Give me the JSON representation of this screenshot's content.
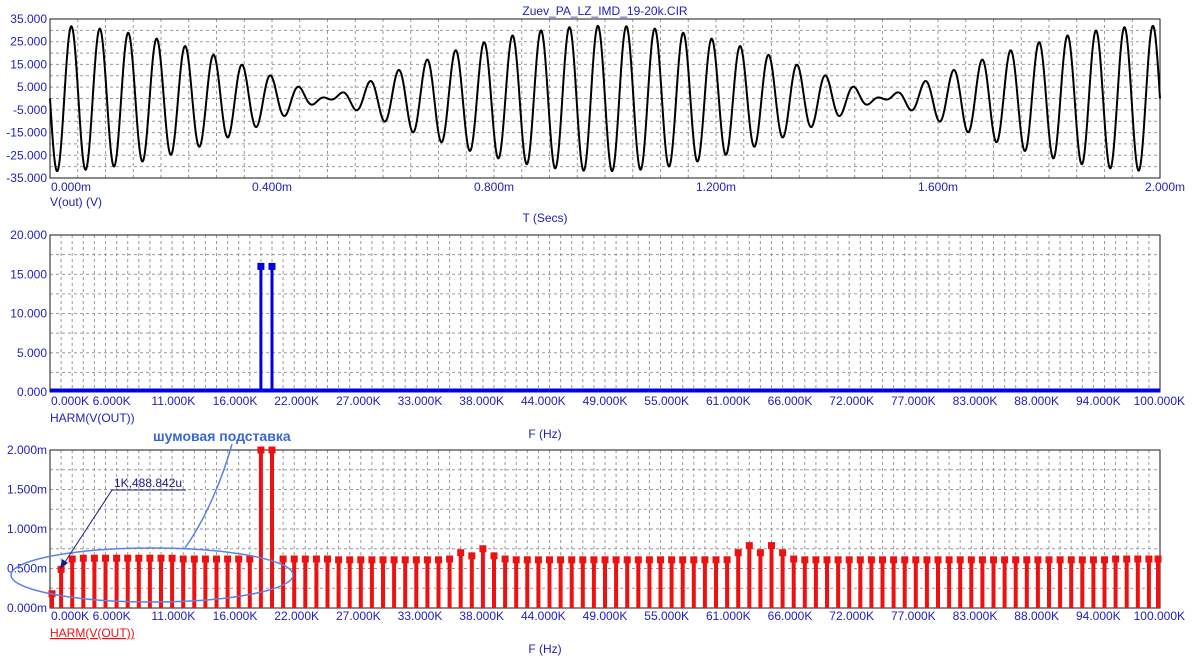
{
  "chart_data": [
    {
      "type": "line",
      "title": "Zuev_PA_LZ_IMD_19-20k.CIR",
      "series_label": "V(out) (V)",
      "xlabel": "T (Secs)",
      "xlim": [
        0,
        0.002
      ],
      "ylim": [
        -35,
        35
      ],
      "x_tick_labels": [
        "0.000m",
        "0.400m",
        "0.800m",
        "1.200m",
        "1.600m",
        "2.000m"
      ],
      "y_tick_labels": [
        "35.000",
        "25.000",
        "15.000",
        "5.000",
        "-5.000",
        "-15.000",
        "-25.000",
        "-35.000"
      ],
      "signal": {
        "tones_hz": [
          19000,
          20000
        ],
        "amplitude_each": 16,
        "peak": 32
      },
      "grid": true,
      "color": "#000000"
    },
    {
      "type": "bar",
      "series_label": "HARM(V(OUT))",
      "xlabel": "F (Hz)",
      "xlim": [
        0,
        100000
      ],
      "ylim": [
        0,
        20
      ],
      "x_tick_labels": [
        "0.000K",
        "6.000K",
        "11.000K",
        "16.000K",
        "22.000K",
        "27.000K",
        "33.000K",
        "38.000K",
        "44.000K",
        "49.000K",
        "55.000K",
        "61.000K",
        "66.000K",
        "72.000K",
        "77.000K",
        "83.000K",
        "88.000K",
        "94.000K",
        "100.000K"
      ],
      "y_tick_labels": [
        "20.000",
        "15.000",
        "10.000",
        "5.000",
        "0.000"
      ],
      "x": [
        19000,
        20000
      ],
      "values": [
        16,
        16
      ],
      "grid": true,
      "color": "#0000e0"
    },
    {
      "type": "bar",
      "series_label": "HARM(V(OUT))",
      "xlabel": "F (Hz)",
      "xlim": [
        0,
        100000
      ],
      "ylim": [
        0,
        0.002
      ],
      "x_tick_labels": [
        "0.000K",
        "6.000K",
        "11.000K",
        "16.000K",
        "22.000K",
        "27.000K",
        "33.000K",
        "38.000K",
        "44.000K",
        "49.000K",
        "55.000K",
        "61.000K",
        "66.000K",
        "72.000K",
        "77.000K",
        "83.000K",
        "88.000K",
        "94.000K",
        "100.000K"
      ],
      "y_tick_labels": [
        "2.000m",
        "1.500m",
        "1.000m",
        "0.500m",
        "0.000m"
      ],
      "bin_hz": 1000,
      "x": [
        0,
        1000,
        2000,
        3000,
        4000,
        5000,
        6000,
        7000,
        8000,
        9000,
        10000,
        11000,
        12000,
        13000,
        14000,
        15000,
        16000,
        17000,
        18000,
        19000,
        20000,
        21000,
        22000,
        23000,
        24000,
        25000,
        26000,
        27000,
        28000,
        29000,
        30000,
        31000,
        32000,
        33000,
        34000,
        35000,
        36000,
        37000,
        38000,
        39000,
        40000,
        41000,
        42000,
        43000,
        44000,
        45000,
        46000,
        47000,
        48000,
        49000,
        50000,
        51000,
        52000,
        53000,
        54000,
        55000,
        56000,
        57000,
        58000,
        59000,
        60000,
        61000,
        62000,
        63000,
        64000,
        65000,
        66000,
        67000,
        68000,
        69000,
        70000,
        71000,
        72000,
        73000,
        74000,
        75000,
        76000,
        77000,
        78000,
        79000,
        80000,
        81000,
        82000,
        83000,
        84000,
        85000,
        86000,
        87000,
        88000,
        89000,
        90000,
        91000,
        92000,
        93000,
        94000,
        95000,
        96000,
        97000,
        98000,
        99000,
        100000
      ],
      "values": [
        0.00018,
        0.00048884,
        0.00062,
        0.00063,
        0.00063,
        0.00063,
        0.00063,
        0.00063,
        0.00063,
        0.00063,
        0.00063,
        0.00063,
        0.00062,
        0.00062,
        0.00062,
        0.00062,
        0.00062,
        0.00062,
        0.00062,
        0.002,
        0.002,
        0.00062,
        0.00062,
        0.00062,
        0.00062,
        0.00062,
        0.00061,
        0.00061,
        0.00061,
        0.00061,
        0.00061,
        0.00061,
        0.00061,
        0.00061,
        0.00061,
        0.00061,
        0.00062,
        0.0007,
        0.00066,
        0.00075,
        0.00066,
        0.00062,
        0.00061,
        0.00061,
        0.00061,
        0.00061,
        0.00061,
        0.00061,
        0.00061,
        0.00061,
        0.00061,
        0.00061,
        0.00061,
        0.00061,
        0.00061,
        0.00061,
        0.00061,
        0.00061,
        0.00061,
        0.00061,
        0.00061,
        0.00061,
        0.0007,
        0.00079,
        0.0007,
        0.00079,
        0.0007,
        0.00062,
        0.00061,
        0.00061,
        0.00061,
        0.00061,
        0.00061,
        0.00061,
        0.00061,
        0.00061,
        0.00061,
        0.00061,
        0.00061,
        0.00061,
        0.00061,
        0.00061,
        0.00061,
        0.00061,
        0.00061,
        0.00061,
        0.00061,
        0.00061,
        0.00061,
        0.00061,
        0.00061,
        0.00061,
        0.00061,
        0.00061,
        0.00061,
        0.00061,
        0.00062,
        0.00062,
        0.00062,
        0.00062,
        0.00062
      ],
      "annotations": {
        "marker_label": "1K,488.842u",
        "note": "шумовая подставка"
      },
      "grid": true,
      "color": "#ee1111"
    }
  ]
}
